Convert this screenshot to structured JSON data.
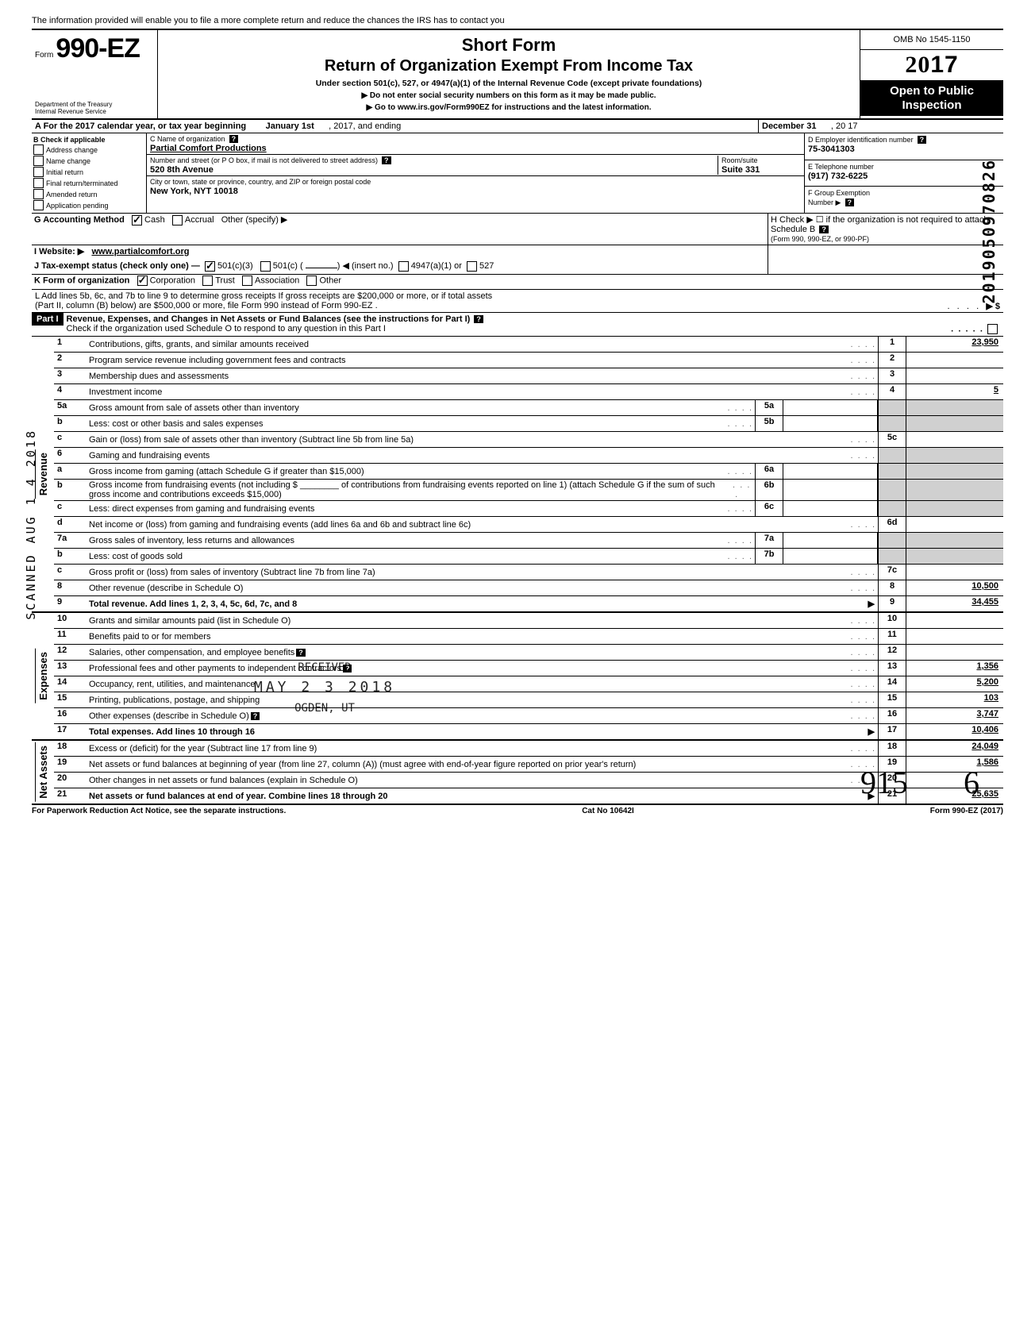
{
  "topHint": "The information provided will enable you to file a more complete return and reduce the chances the IRS has to contact you",
  "form": {
    "prefix": "Form",
    "number": "990-EZ",
    "dept": "Department of the Treasury\nInternal Revenue Service"
  },
  "header": {
    "shortForm": "Short Form",
    "title": "Return of Organization Exempt From Income Tax",
    "underSection": "Under section 501(c), 527, or 4947(a)(1) of the Internal Revenue Code (except private foundations)",
    "noSSN": "▶ Do not enter social security numbers on this form as it may be made public.",
    "goto": "▶ Go to www.irs.gov/Form990EZ for instructions and the latest information."
  },
  "rightBox": {
    "omb": "OMB No 1545-1150",
    "yearPrefix": "20",
    "yearBold": "17",
    "openPublic": "Open to Public Inspection"
  },
  "lineA": {
    "label": "A  For the 2017 calendar year, or tax year beginning",
    "begin": "January 1st",
    "mid": ", 2017, and ending",
    "end": "December 31",
    "yearSuffix": ", 20  17"
  },
  "sectionB": {
    "title": "B  Check if applicable",
    "opts": [
      "Address change",
      "Name change",
      "Initial return",
      "Final return/terminated",
      "Amended return",
      "Application pending"
    ]
  },
  "sectionC": {
    "nameLabel": "C  Name of organization",
    "name": "Partial Comfort Productions",
    "streetLabel": "Number and street (or P O  box, if mail is not delivered to street address)",
    "street": "520 8th Avenue",
    "roomLabel": "Room/suite",
    "room": "Suite 331",
    "cityLabel": "City or town, state or province, country, and ZIP or foreign postal code",
    "city": "New York, NYT 10018"
  },
  "sectionD": {
    "label": "D Employer identification number",
    "value": "75-3041303"
  },
  "sectionE": {
    "label": "E  Telephone number",
    "value": "(917) 732-6225"
  },
  "sectionF": {
    "label": "F  Group Exemption",
    "label2": "Number ▶"
  },
  "lineG": {
    "label": "G  Accounting Method",
    "cash": "Cash",
    "accrual": "Accrual",
    "other": "Other (specify) ▶"
  },
  "lineH": {
    "text": "H  Check ▶ ☐ if the organization is not required to attach Schedule B",
    "sub": "(Form 990, 990-EZ, or 990-PF)"
  },
  "lineI": {
    "label": "I   Website: ▶",
    "value": "www.partialcomfort.org"
  },
  "lineJ": {
    "label": "J  Tax-exempt status (check only one) —",
    "opt1": "501(c)(3)",
    "opt2": "501(c) (",
    "insert": ") ◀ (insert no.)",
    "opt3": "4947(a)(1) or",
    "opt4": "527"
  },
  "lineK": {
    "label": "K  Form of organization",
    "corp": "Corporation",
    "trust": "Trust",
    "assoc": "Association",
    "other": "Other"
  },
  "lineL": {
    "text1": "L  Add lines 5b, 6c, and 7b to line 9 to determine gross receipts  If gross receipts are $200,000 or more, or if total assets",
    "text2": "(Part II, column (B) below) are $500,000 or more, file Form 990 instead of Form 990-EZ .",
    "arrow": "▶    $"
  },
  "part1": {
    "tag": "Part I",
    "title": "Revenue, Expenses, and Changes in Net Assets or Fund Balances (see the instructions for Part I)",
    "sub": "Check if the organization used Schedule O to respond to any question in this Part I"
  },
  "sections": {
    "revenue": "Revenue",
    "expenses": "Expenses",
    "netassets": "Net Assets"
  },
  "lines": [
    {
      "n": "1",
      "d": "Contributions, gifts, grants, and similar amounts received",
      "r": "1",
      "v": "23,950"
    },
    {
      "n": "2",
      "d": "Program service revenue including government fees and contracts",
      "r": "2",
      "v": ""
    },
    {
      "n": "3",
      "d": "Membership dues and assessments",
      "r": "3",
      "v": ""
    },
    {
      "n": "4",
      "d": "Investment income",
      "r": "4",
      "v": "5"
    },
    {
      "n": "5a",
      "d": "Gross amount from sale of assets other than inventory",
      "m": "5a",
      "mv": ""
    },
    {
      "n": "b",
      "d": "Less: cost or other basis and sales expenses",
      "m": "5b",
      "mv": ""
    },
    {
      "n": "c",
      "d": "Gain or (loss) from sale of assets other than inventory (Subtract line 5b from line 5a)",
      "r": "5c",
      "v": ""
    },
    {
      "n": "6",
      "d": "Gaming and fundraising events"
    },
    {
      "n": "a",
      "d": "Gross income from gaming (attach Schedule G if greater than $15,000)",
      "m": "6a",
      "mv": ""
    },
    {
      "n": "b",
      "d": "Gross income from fundraising events (not including  $ ________ of contributions from fundraising events reported on line 1) (attach Schedule G if the sum of such gross income and contributions exceeds $15,000)",
      "m": "6b",
      "mv": ""
    },
    {
      "n": "c",
      "d": "Less: direct expenses from gaming and fundraising events",
      "m": "6c",
      "mv": ""
    },
    {
      "n": "d",
      "d": "Net income or (loss) from gaming and fundraising events (add lines 6a and 6b and subtract line 6c)",
      "r": "6d",
      "v": ""
    },
    {
      "n": "7a",
      "d": "Gross sales of inventory, less returns and allowances",
      "m": "7a",
      "mv": ""
    },
    {
      "n": "b",
      "d": "Less: cost of goods sold",
      "m": "7b",
      "mv": ""
    },
    {
      "n": "c",
      "d": "Gross profit or (loss) from sales of inventory (Subtract line 7b from line 7a)",
      "r": "7c",
      "v": ""
    },
    {
      "n": "8",
      "d": "Other revenue (describe in Schedule O)",
      "r": "8",
      "v": "10,500"
    },
    {
      "n": "9",
      "d": "Total revenue. Add lines 1, 2, 3, 4, 5c, 6d, 7c, and 8",
      "r": "9",
      "v": "34,455",
      "bold": true,
      "arrow": true
    }
  ],
  "expLines": [
    {
      "n": "10",
      "d": "Grants and similar amounts paid (list in Schedule O)",
      "r": "10",
      "v": ""
    },
    {
      "n": "11",
      "d": "Benefits paid to or for members",
      "r": "11",
      "v": ""
    },
    {
      "n": "12",
      "d": "Salaries, other compensation, and employee benefits",
      "r": "12",
      "v": "",
      "q": true
    },
    {
      "n": "13",
      "d": "Professional fees and other payments to independent contractors",
      "r": "13",
      "v": "1,356",
      "q": true
    },
    {
      "n": "14",
      "d": "Occupancy, rent, utilities, and maintenance",
      "r": "14",
      "v": "5,200"
    },
    {
      "n": "15",
      "d": "Printing, publications, postage, and shipping",
      "r": "15",
      "v": "103"
    },
    {
      "n": "16",
      "d": "Other expenses (describe in Schedule O)",
      "r": "16",
      "v": "3,747",
      "q": true
    },
    {
      "n": "17",
      "d": "Total expenses. Add lines 10 through 16",
      "r": "17",
      "v": "10,406",
      "bold": true,
      "arrow": true
    }
  ],
  "naLines": [
    {
      "n": "18",
      "d": "Excess or (deficit) for the year (Subtract line 17 from line 9)",
      "r": "18",
      "v": "24,049"
    },
    {
      "n": "19",
      "d": "Net assets or fund balances at beginning of year (from line 27, column (A)) (must agree with end-of-year figure reported on prior year's return)",
      "r": "19",
      "v": "1,586"
    },
    {
      "n": "20",
      "d": "Other changes in net assets or fund balances (explain in Schedule O)",
      "r": "20",
      "v": ""
    },
    {
      "n": "21",
      "d": "Net assets or fund balances at end of year. Combine lines 18 through 20",
      "r": "21",
      "v": "25,635",
      "bold": true,
      "arrow": true
    }
  ],
  "footer": {
    "left": "For Paperwork Reduction Act Notice, see the separate instructions.",
    "mid": "Cat  No  10642I",
    "right": "Form 990-EZ (2017)"
  },
  "marginLeft": "SCANNED  AUG 1 4 2018",
  "marginRight": "2019050970826",
  "stamp": {
    "l1": "RECEIVED",
    "l2": "MAY 2 3 2018",
    "l3": "OGDEN, UT"
  },
  "hand1": "915",
  "hand2": "6"
}
